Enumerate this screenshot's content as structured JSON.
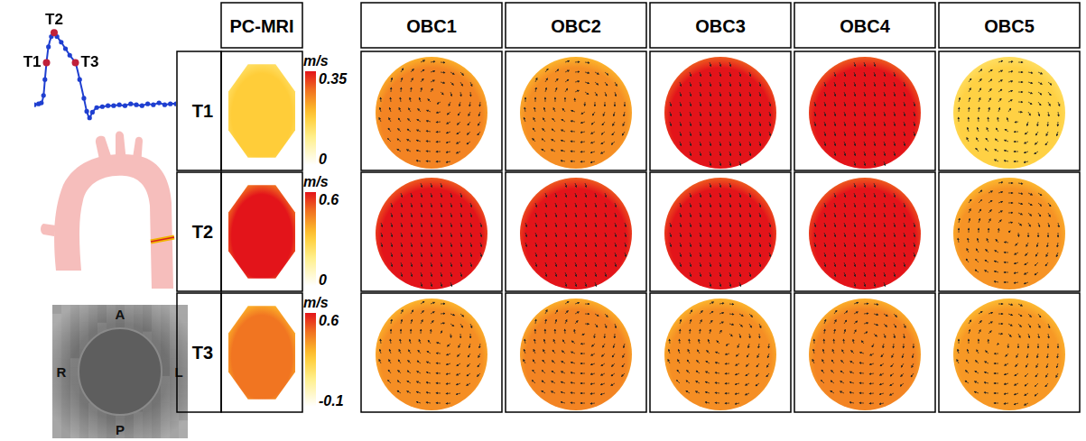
{
  "chart_data": {
    "type": "line",
    "x": [
      0,
      0.03,
      0.05,
      0.065,
      0.075,
      0.086,
      0.1,
      0.12,
      0.14,
      0.16,
      0.19,
      0.22,
      0.25,
      0.29,
      0.32,
      0.35,
      0.37,
      0.39,
      0.41,
      0.44,
      0.48,
      0.52,
      0.56,
      0.6,
      0.64,
      0.68,
      0.72,
      0.76,
      0.8,
      0.84,
      0.88,
      0.92,
      0.96,
      1.0
    ],
    "values": [
      0.23,
      0.24,
      0.25,
      0.33,
      0.5,
      0.68,
      0.85,
      0.96,
      1.0,
      0.96,
      0.9,
      0.83,
      0.76,
      0.68,
      0.5,
      0.3,
      0.16,
      0.09,
      0.15,
      0.2,
      0.21,
      0.22,
      0.22,
      0.23,
      0.22,
      0.24,
      0.23,
      0.22,
      0.24,
      0.23,
      0.25,
      0.23,
      0.24,
      0.24
    ],
    "xlim": [
      0,
      1
    ],
    "ylim": [
      0,
      1.1
    ],
    "tick_labels": false,
    "grid": false,
    "color": "#1f3fd0",
    "marker": "circle",
    "annotations": [
      {
        "text": "T1",
        "x": 0.086,
        "y": 0.68
      },
      {
        "text": "T2",
        "x": 0.14,
        "y": 1.0
      },
      {
        "text": "T3",
        "x": 0.29,
        "y": 0.68
      }
    ]
  },
  "mri_orientation": {
    "anterior": "A",
    "right": "R",
    "left": "L",
    "posterior": "P"
  },
  "panels": {
    "column_headers": [
      "PC-MRI",
      "OBC1",
      "OBC2",
      "OBC3",
      "OBC4",
      "OBC5"
    ],
    "rows": [
      {
        "label": "T1",
        "colorbar": {
          "unit": "m/s",
          "range": [
            0,
            0.35
          ],
          "ticks": [
            0,
            0.35
          ]
        },
        "velocities": [
          0.18,
          0.26,
          0.25,
          0.35,
          0.35,
          0.17
        ]
      },
      {
        "label": "T2",
        "colorbar": {
          "unit": "m/s",
          "range": [
            0,
            0.6
          ],
          "ticks": [
            0,
            0.6
          ]
        },
        "velocities": [
          0.6,
          0.6,
          0.6,
          0.6,
          0.6,
          0.42
        ]
      },
      {
        "label": "T3",
        "colorbar": {
          "unit": "m/s",
          "range": [
            -0.1,
            0.6
          ],
          "ticks": [
            -0.1,
            0.6
          ]
        },
        "velocities": [
          0.45,
          0.4,
          0.42,
          0.4,
          0.42,
          0.38
        ]
      }
    ]
  }
}
